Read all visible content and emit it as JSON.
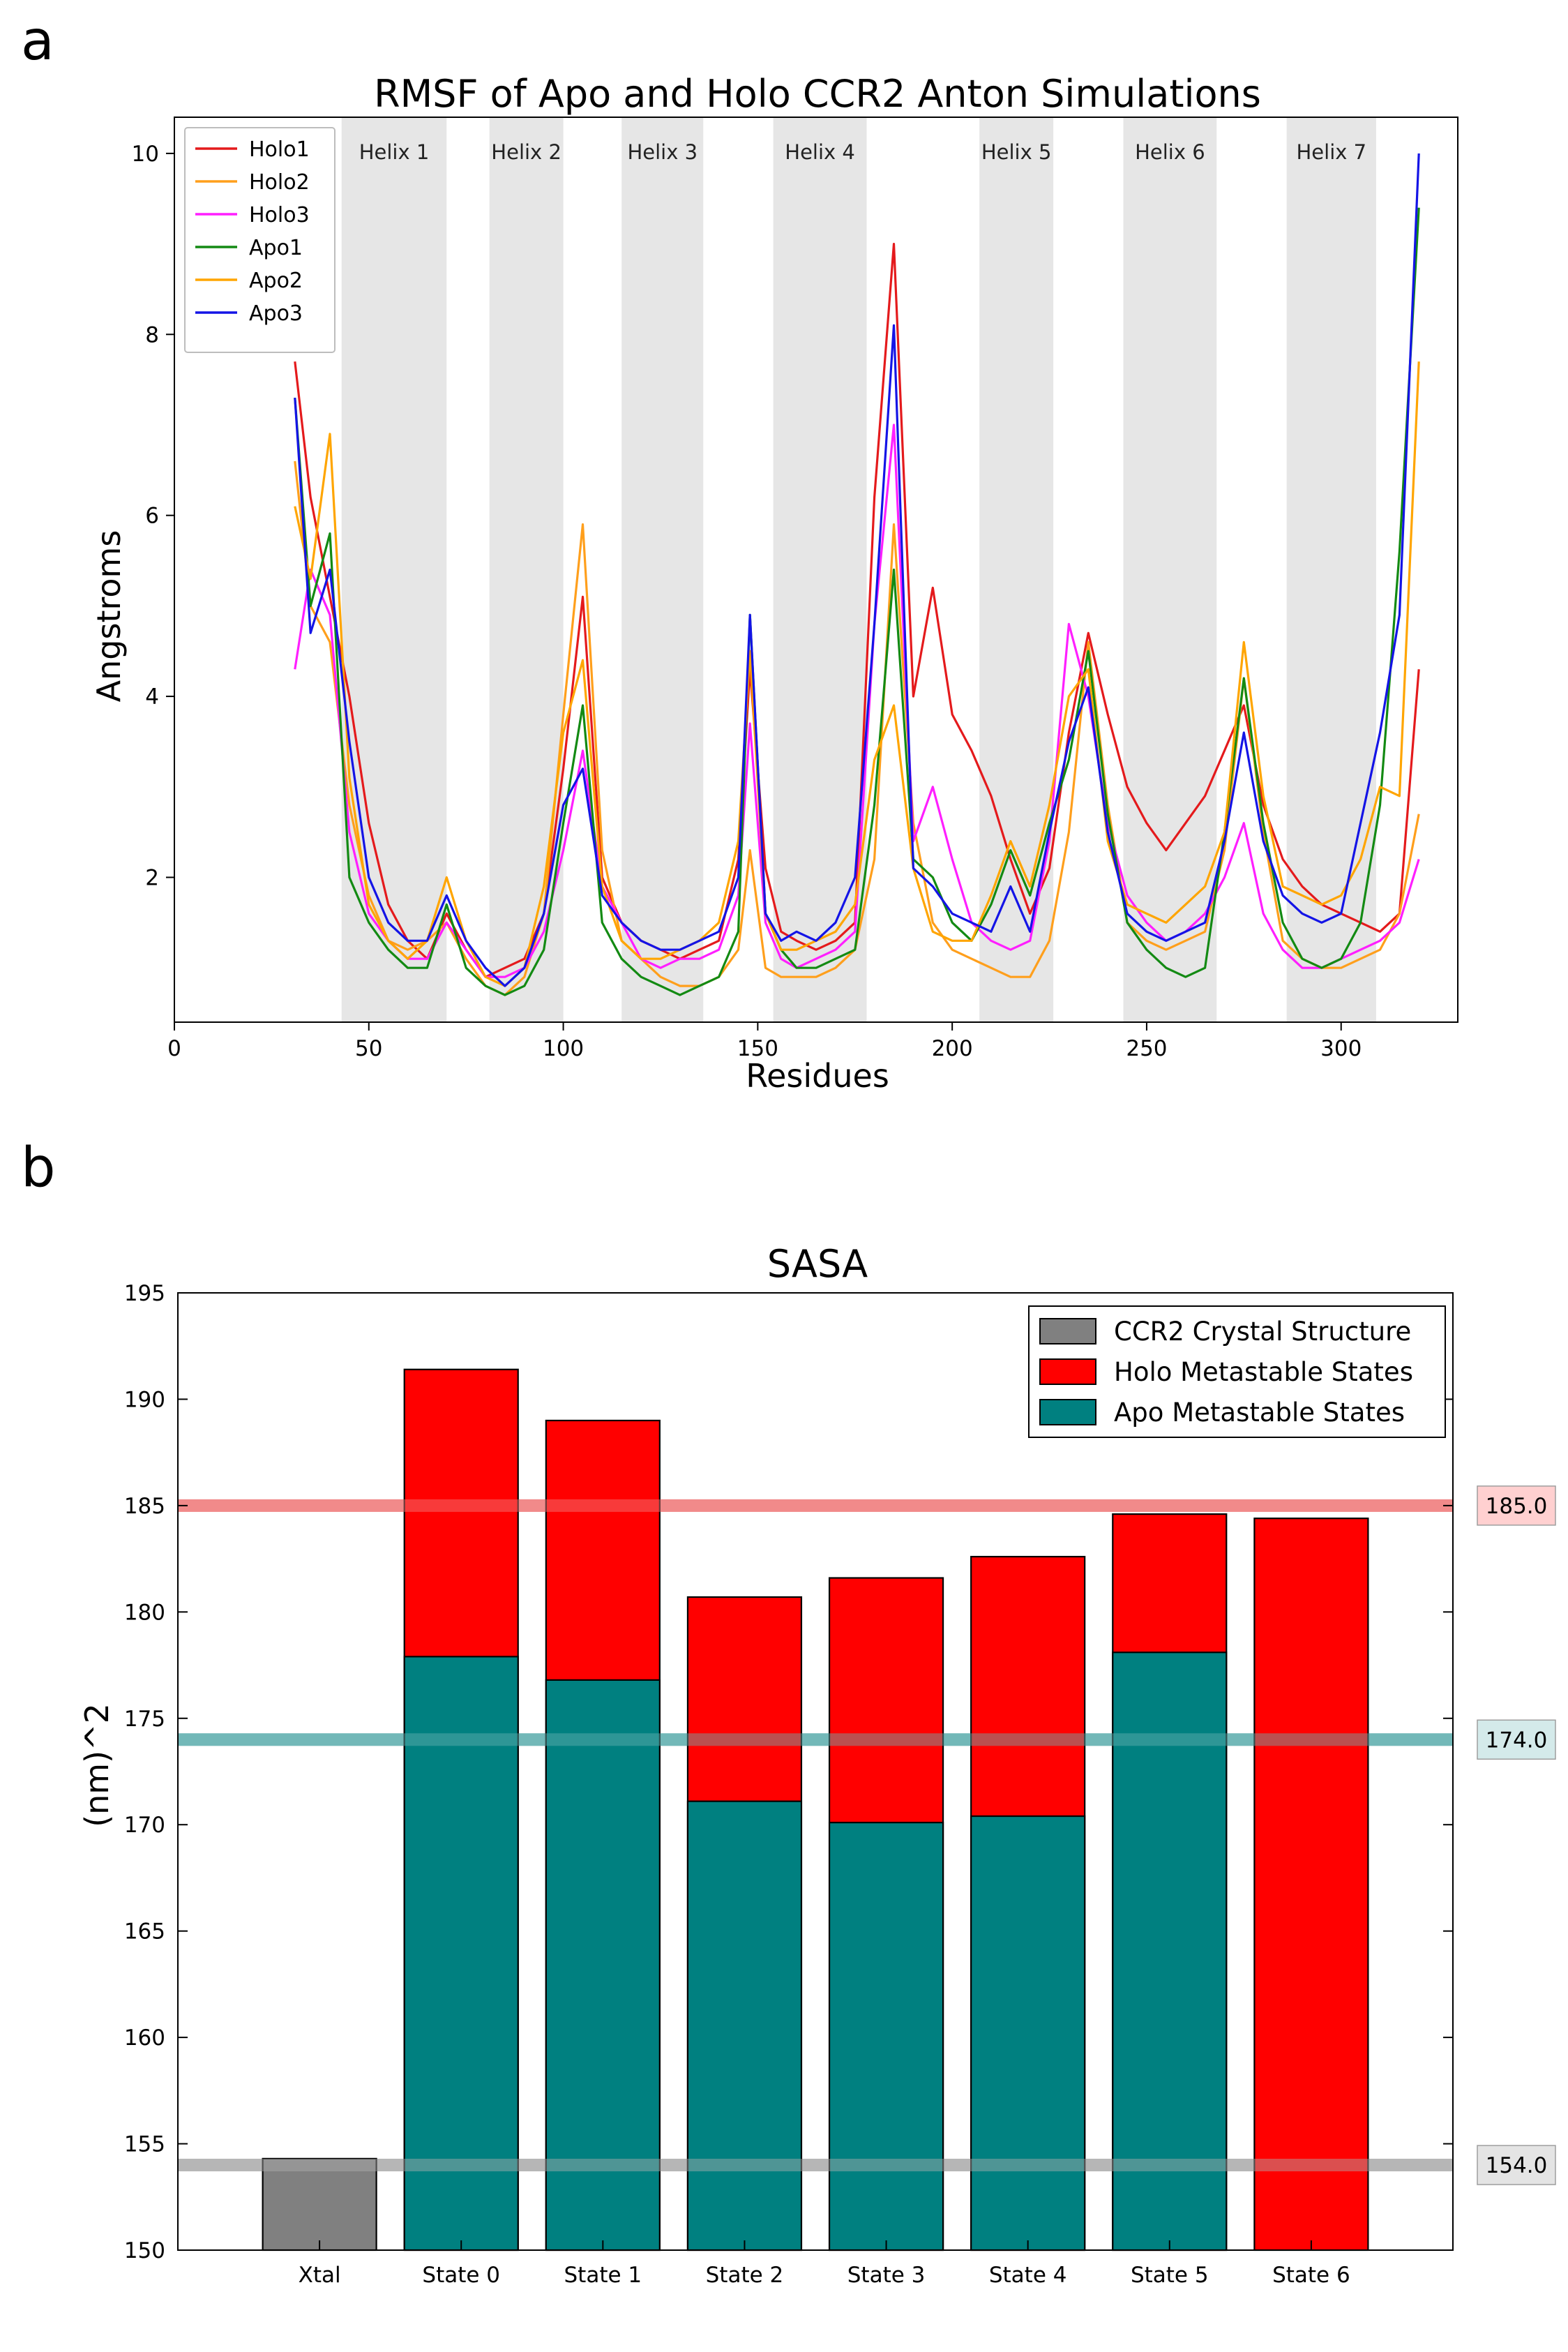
{
  "chart_data": [
    {
      "panel": "a",
      "type": "line",
      "title": "RMSF of Apo and Holo CCR2 Anton Simulations",
      "xlabel": "Residues",
      "ylabel": "Angstroms",
      "xlim": [
        0,
        330
      ],
      "ylim": [
        0.4,
        10.4
      ],
      "xticks": [
        0,
        50,
        100,
        150,
        200,
        250,
        300
      ],
      "yticks": [
        2,
        4,
        6,
        8,
        10
      ],
      "legend_position": "top-left",
      "helices": [
        {
          "label": "Helix 1",
          "start": 43,
          "end": 70
        },
        {
          "label": "Helix 2",
          "start": 81,
          "end": 100
        },
        {
          "label": "Helix 3",
          "start": 115,
          "end": 136
        },
        {
          "label": "Helix 4",
          "start": 154,
          "end": 178
        },
        {
          "label": "Helix 5",
          "start": 207,
          "end": 226
        },
        {
          "label": "Helix 6",
          "start": 244,
          "end": 268
        },
        {
          "label": "Helix 7",
          "start": 286,
          "end": 309
        }
      ],
      "x": [
        31,
        35,
        40,
        45,
        50,
        55,
        60,
        65,
        70,
        75,
        80,
        85,
        90,
        95,
        100,
        105,
        110,
        115,
        120,
        125,
        130,
        135,
        140,
        145,
        148,
        152,
        156,
        160,
        165,
        170,
        175,
        180,
        185,
        190,
        195,
        200,
        205,
        210,
        215,
        220,
        225,
        230,
        235,
        240,
        245,
        250,
        255,
        260,
        265,
        270,
        275,
        280,
        285,
        290,
        295,
        300,
        305,
        310,
        315,
        320
      ],
      "series": [
        {
          "name": "Holo1",
          "color": "#e41a1c",
          "values": [
            7.7,
            6.2,
            5.1,
            4.0,
            2.6,
            1.7,
            1.3,
            1.1,
            1.6,
            1.2,
            0.9,
            1.0,
            1.1,
            1.6,
            3.2,
            5.1,
            2.0,
            1.5,
            1.3,
            1.2,
            1.1,
            1.2,
            1.3,
            2.2,
            4.3,
            2.1,
            1.4,
            1.3,
            1.2,
            1.3,
            1.5,
            6.2,
            9.0,
            4.0,
            5.2,
            3.8,
            3.4,
            2.9,
            2.2,
            1.6,
            2.1,
            3.6,
            4.7,
            3.8,
            3.0,
            2.6,
            2.3,
            2.6,
            2.9,
            3.4,
            3.9,
            2.8,
            2.2,
            1.9,
            1.7,
            1.6,
            1.5,
            1.4,
            1.6,
            4.3
          ]
        },
        {
          "name": "Holo2",
          "color": "#ff9f1c",
          "values": [
            6.6,
            5.0,
            4.6,
            2.8,
            1.8,
            1.3,
            1.2,
            1.3,
            1.5,
            1.1,
            0.8,
            0.7,
            0.9,
            1.6,
            3.8,
            5.9,
            2.3,
            1.3,
            1.1,
            0.9,
            0.8,
            0.8,
            0.9,
            1.2,
            2.3,
            1.0,
            0.9,
            0.9,
            0.9,
            1.0,
            1.2,
            2.2,
            5.9,
            2.6,
            1.5,
            1.2,
            1.1,
            1.0,
            0.9,
            0.9,
            1.3,
            2.5,
            4.6,
            2.8,
            1.5,
            1.3,
            1.2,
            1.3,
            1.4,
            2.3,
            4.2,
            2.5,
            1.3,
            1.1,
            1.0,
            1.0,
            1.1,
            1.2,
            1.6,
            2.7
          ]
        },
        {
          "name": "Holo3",
          "color": "#ff1fff",
          "values": [
            4.3,
            5.4,
            4.9,
            2.5,
            1.6,
            1.3,
            1.1,
            1.1,
            1.5,
            1.2,
            0.9,
            0.9,
            1.0,
            1.4,
            2.3,
            3.4,
            1.9,
            1.5,
            1.1,
            1.0,
            1.1,
            1.1,
            1.2,
            1.8,
            3.7,
            1.5,
            1.1,
            1.0,
            1.1,
            1.2,
            1.4,
            4.8,
            7.0,
            2.4,
            3.0,
            2.2,
            1.5,
            1.3,
            1.2,
            1.3,
            2.4,
            4.8,
            4.0,
            2.6,
            1.8,
            1.5,
            1.3,
            1.4,
            1.6,
            2.0,
            2.6,
            1.6,
            1.2,
            1.0,
            1.0,
            1.1,
            1.2,
            1.3,
            1.5,
            2.2
          ]
        },
        {
          "name": "Apo1",
          "color": "#138a13",
          "values": [
            7.3,
            5.0,
            5.8,
            2.0,
            1.5,
            1.2,
            1.0,
            1.0,
            1.7,
            1.0,
            0.8,
            0.7,
            0.8,
            1.2,
            2.6,
            3.9,
            1.5,
            1.1,
            0.9,
            0.8,
            0.7,
            0.8,
            0.9,
            1.4,
            4.9,
            1.6,
            1.2,
            1.0,
            1.0,
            1.1,
            1.2,
            2.8,
            5.4,
            2.2,
            2.0,
            1.5,
            1.3,
            1.7,
            2.3,
            1.8,
            2.6,
            3.3,
            4.5,
            2.7,
            1.5,
            1.2,
            1.0,
            0.9,
            1.0,
            2.5,
            4.2,
            2.6,
            1.5,
            1.1,
            1.0,
            1.1,
            1.5,
            2.8,
            5.6,
            9.4
          ]
        },
        {
          "name": "Apo2",
          "color": "#ffa500",
          "values": [
            6.1,
            5.3,
            6.9,
            3.1,
            1.7,
            1.3,
            1.1,
            1.3,
            2.0,
            1.3,
            0.9,
            0.8,
            1.0,
            1.9,
            3.6,
            4.4,
            1.9,
            1.3,
            1.1,
            1.1,
            1.2,
            1.3,
            1.5,
            2.4,
            4.5,
            1.6,
            1.2,
            1.2,
            1.3,
            1.4,
            1.7,
            3.3,
            3.9,
            2.1,
            1.4,
            1.3,
            1.3,
            1.8,
            2.4,
            1.9,
            2.8,
            4.0,
            4.3,
            2.4,
            1.7,
            1.6,
            1.5,
            1.7,
            1.9,
            2.5,
            4.6,
            2.9,
            1.9,
            1.8,
            1.7,
            1.8,
            2.2,
            3.0,
            2.9,
            7.7
          ]
        },
        {
          "name": "Apo3",
          "color": "#1414e6",
          "values": [
            7.3,
            4.7,
            5.4,
            3.5,
            2.0,
            1.5,
            1.3,
            1.3,
            1.8,
            1.3,
            1.0,
            0.8,
            1.0,
            1.6,
            2.8,
            3.2,
            1.8,
            1.5,
            1.3,
            1.2,
            1.2,
            1.3,
            1.4,
            2.0,
            4.9,
            1.6,
            1.3,
            1.4,
            1.3,
            1.5,
            2.0,
            4.8,
            8.1,
            2.1,
            1.9,
            1.6,
            1.5,
            1.4,
            1.9,
            1.4,
            2.5,
            3.5,
            4.1,
            2.5,
            1.6,
            1.4,
            1.3,
            1.4,
            1.5,
            2.4,
            3.6,
            2.4,
            1.8,
            1.6,
            1.5,
            1.6,
            2.6,
            3.6,
            4.9,
            10.0
          ]
        }
      ]
    },
    {
      "panel": "b",
      "type": "bar",
      "title": "SASA",
      "xlabel": "",
      "ylabel": "(nm)^2",
      "ylim": [
        150,
        195
      ],
      "yticks": [
        150,
        155,
        160,
        165,
        170,
        175,
        180,
        185,
        190,
        195
      ],
      "legend_position": "top-right",
      "categories": [
        "Xtal",
        "State 0",
        "State 1",
        "State 2",
        "State 3",
        "State 4",
        "State 5",
        "State 6"
      ],
      "series": [
        {
          "name": "CCR2 Crystal Structure",
          "color": "#808080",
          "values": [
            154.3,
            null,
            null,
            null,
            null,
            null,
            null,
            null
          ]
        },
        {
          "name": "Holo Metastable States",
          "color": "#ff0000",
          "values": [
            null,
            191.4,
            189.0,
            180.7,
            181.6,
            182.6,
            184.6,
            184.4
          ]
        },
        {
          "name": "Apo Metastable States",
          "color": "#008080",
          "values": [
            null,
            177.9,
            176.8,
            171.1,
            170.1,
            170.4,
            178.1,
            null
          ]
        }
      ],
      "reference_lines": [
        {
          "value": 185.0,
          "label": "185.0",
          "color": "#f08080",
          "box_color": "#ffd0d0"
        },
        {
          "value": 174.0,
          "label": "174.0",
          "color": "#66b2b2",
          "box_color": "#d4eaea"
        },
        {
          "value": 154.0,
          "label": "154.0",
          "color": "#b0b0b0",
          "box_color": "#e4e4e4"
        }
      ]
    }
  ],
  "panel_labels": [
    "a",
    "b"
  ]
}
